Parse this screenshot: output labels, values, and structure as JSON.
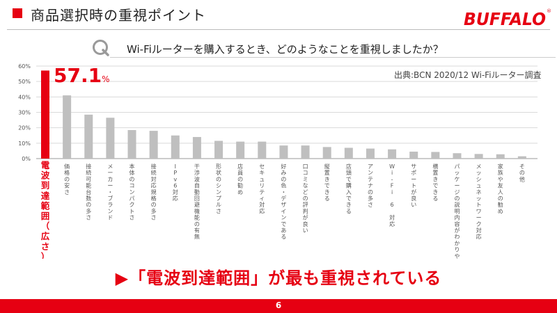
{
  "header": {
    "title": "商品選択時の重視ポイント",
    "logo_text": "BUFFALO"
  },
  "question": {
    "icon_letter": "Q",
    "text": "Wi-Fiルーターを購入するとき、どのようなことを重視しましたか？"
  },
  "source": "出典:BCN 2020/12 Wi-Fiルーター調査",
  "highlight": {
    "value": "57.1",
    "unit": "%"
  },
  "conclusion": "▶「電波到達範囲」が最も重視されている",
  "footer": {
    "page": "6"
  },
  "colors": {
    "accent": "#e60012",
    "bar": "#bfbfbf",
    "grid": "#d9d9d9"
  },
  "chart_data": {
    "type": "bar",
    "y_tick_labels": [
      "0%",
      "10%",
      "20%",
      "30%",
      "40%",
      "50%",
      "60%"
    ],
    "ylim": [
      0,
      60
    ],
    "grid": true,
    "categories": [
      "電波到達範囲（広さ）",
      "価格の安さ",
      "接続可能台数の多さ",
      "メーカー・ブランド",
      "本体のコンパクトさ",
      "接続対応規格の多さ",
      "IPv6対応",
      "干渉波自動回避機能の有無",
      "形状のシンプルさ",
      "店員の勧め",
      "セキュリティ対応",
      "好みの色・デザインである",
      "口コミなどの評判が良い",
      "縦置きできる",
      "店頭で購入できる",
      "アンテナの多さ",
      "Wi-Fi 6 対応",
      "サポートが良い",
      "横置きできる",
      "パッケージの説明内容がわかりやすい",
      "メッシュネットワーク対応",
      "家族や友人の勧め",
      "その他"
    ],
    "values": [
      57.1,
      41,
      28.5,
      26.5,
      18.5,
      18,
      15,
      14,
      11.5,
      11,
      11,
      8.5,
      8.5,
      7.5,
      7,
      6.5,
      6,
      4.5,
      4.3,
      3.5,
      3,
      2.8,
      1.5
    ],
    "highlight_index": 0
  }
}
